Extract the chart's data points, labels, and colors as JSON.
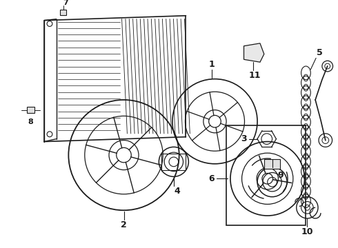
{
  "bg_color": "#ffffff",
  "line_color": "#1a1a1a",
  "lw": 1.0,
  "fig_w": 4.9,
  "fig_h": 3.6,
  "dpi": 100
}
